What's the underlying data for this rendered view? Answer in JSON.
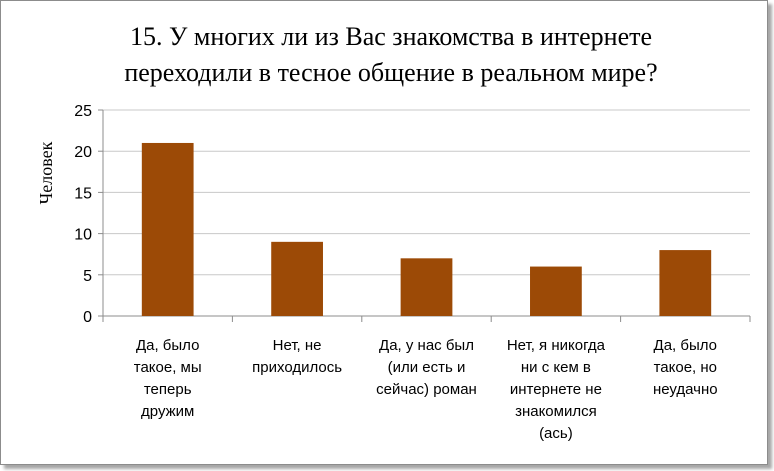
{
  "chart_data": {
    "type": "bar",
    "title": "15. У многих ли из Вас знакомства в интернете\nпереходили в тесное общение в реальном мире?",
    "ylabel": "Человек",
    "xlabel": "",
    "ylim": [
      0,
      25
    ],
    "yticks": [
      0,
      5,
      10,
      15,
      20,
      25
    ],
    "grid": true,
    "legend": "none",
    "bar_color": "#9c4a06",
    "categories": [
      [
        "Да, было",
        "такое, мы",
        "теперь",
        "дружим"
      ],
      [
        "Нет, не",
        "приходилось"
      ],
      [
        "Да, у нас был",
        "(или есть и",
        "сейчас) роман"
      ],
      [
        "Нет, я никогда",
        "ни с кем в",
        "интернете не",
        "знакомился",
        "(ась)"
      ],
      [
        "Да, было",
        "такое, но",
        "неудачно"
      ]
    ],
    "values": [
      21,
      9,
      7,
      6,
      8
    ]
  }
}
